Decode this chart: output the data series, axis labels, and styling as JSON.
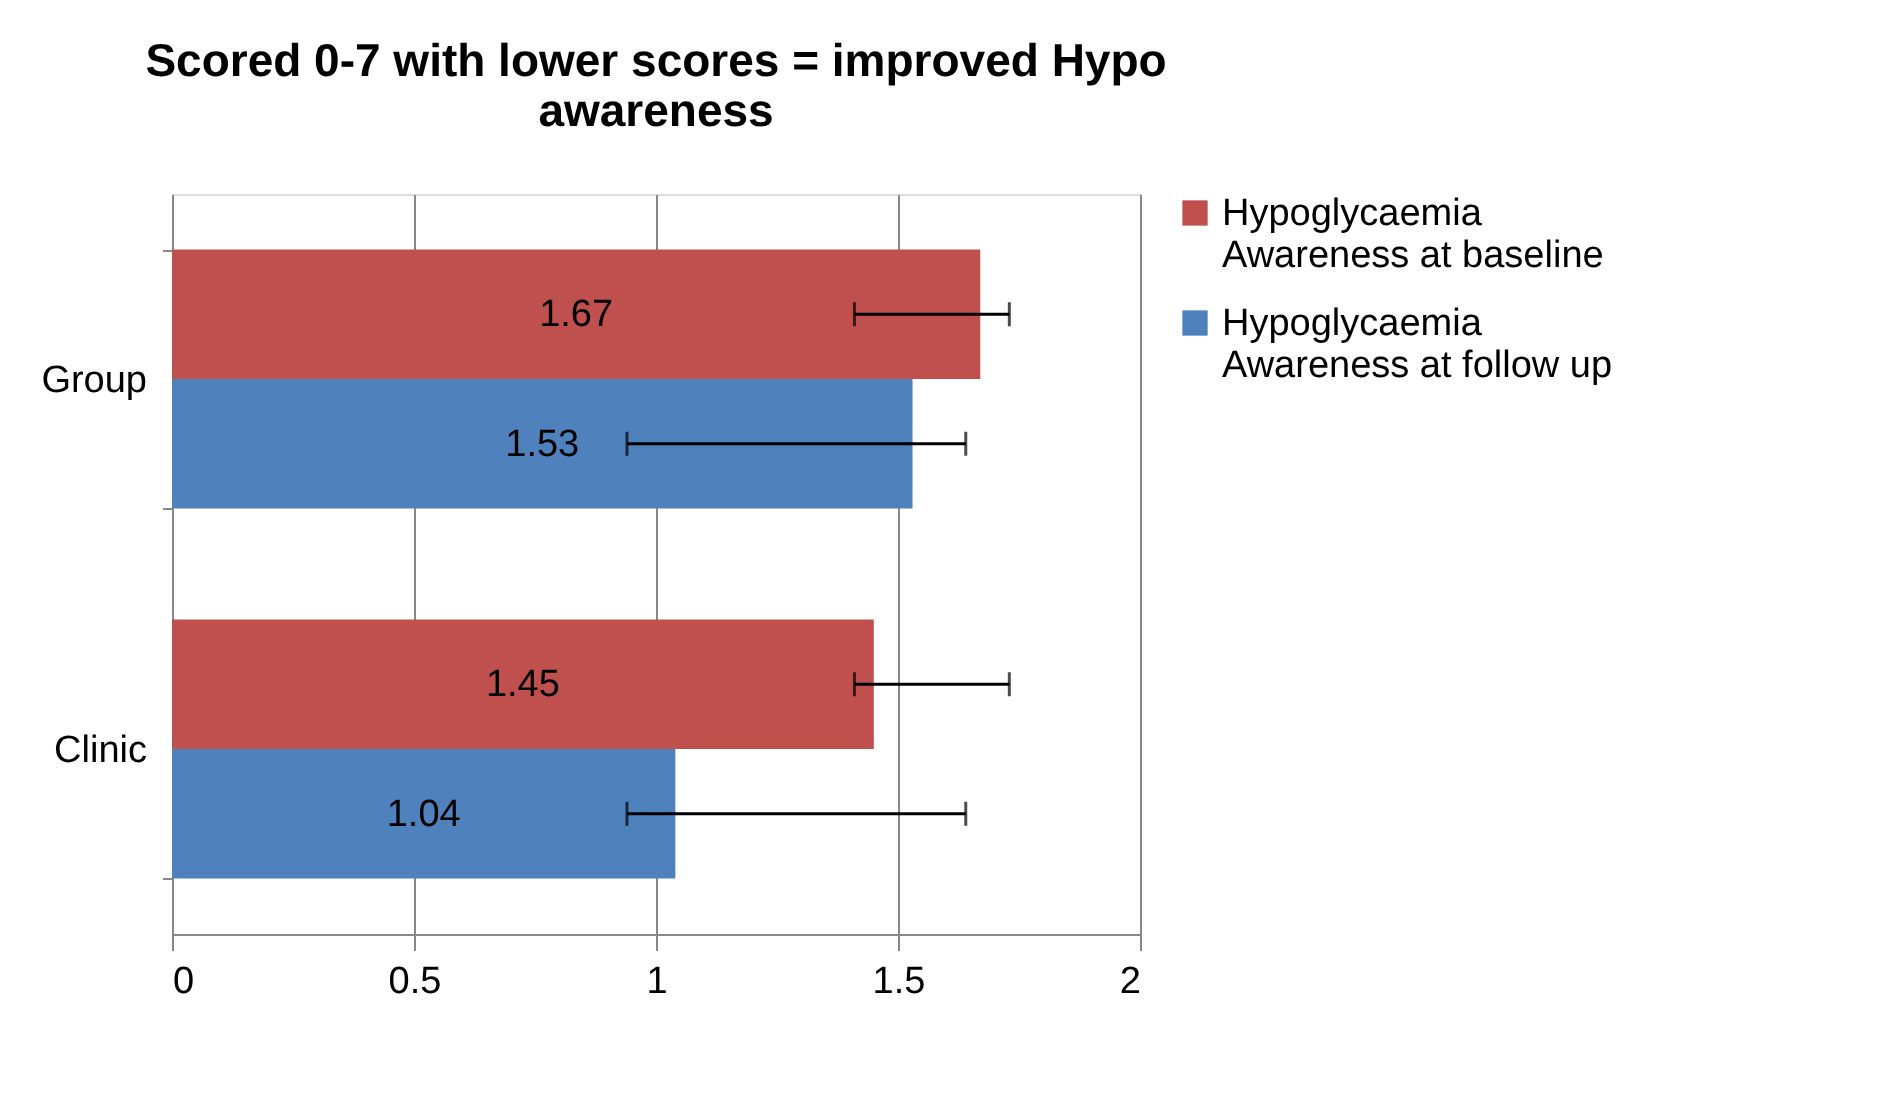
{
  "chart_data": {
    "type": "bar",
    "orientation": "horizontal",
    "title": "Scored 0-7 with lower scores = improved Hypo awareness",
    "categories": [
      "Group",
      "Clinic"
    ],
    "series": [
      {
        "name": "Hypoglycaemia Awareness at baseline",
        "color": "#c0504d",
        "values": [
          1.67,
          1.45
        ],
        "errors": [
          [
            1.41,
            1.73
          ],
          [
            1.41,
            1.73
          ]
        ]
      },
      {
        "name": "Hypoglycaemia Awareness at follow up",
        "color": "#4f81bd",
        "values": [
          1.53,
          1.04
        ],
        "errors": [
          [
            0.94,
            1.64
          ],
          [
            0.94,
            1.64
          ]
        ]
      }
    ],
    "xlim": [
      0,
      2
    ],
    "xticks": [
      0,
      0.5,
      1,
      1.5,
      2
    ],
    "grid": "x",
    "legend": "right",
    "data_labels": true
  }
}
